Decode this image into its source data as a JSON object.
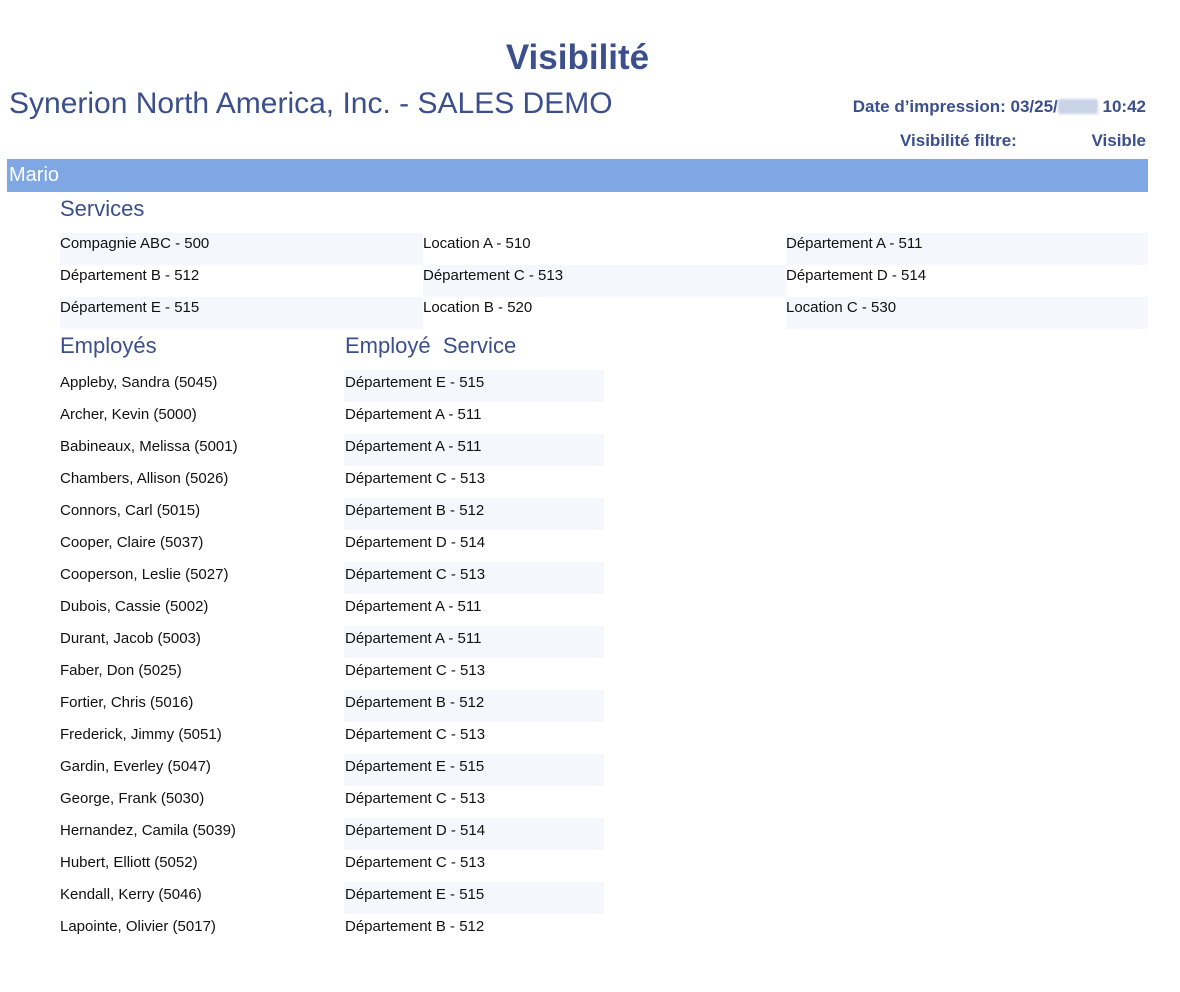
{
  "report": {
    "title": "Visibilité",
    "company": "Synerion North America, Inc. - SALES DEMO",
    "print_date_prefix": "Date d’impression: 03/25/",
    "print_date_time": "10:42",
    "filter_label": "Visibilité filtre:",
    "filter_value": "Visible"
  },
  "user": {
    "name": "Mario"
  },
  "services": {
    "heading": "Services",
    "items": [
      "Compagnie ABC - 500",
      "Location A - 510",
      "Département A - 511",
      "Département B - 512",
      "Département C - 513",
      "Département D - 514",
      "Département E - 515",
      "Location B - 520",
      "Location C - 530"
    ]
  },
  "employees": {
    "heading_name": "Employés",
    "heading_service": "Employé  Service",
    "rows": [
      {
        "name": "Appleby, Sandra (5045)",
        "service": "Département E - 515"
      },
      {
        "name": "Archer, Kevin (5000)",
        "service": "Département A - 511"
      },
      {
        "name": "Babineaux, Melissa (5001)",
        "service": "Département A - 511"
      },
      {
        "name": "Chambers, Allison (5026)",
        "service": "Département C - 513"
      },
      {
        "name": "Connors, Carl (5015)",
        "service": "Département B - 512"
      },
      {
        "name": "Cooper, Claire (5037)",
        "service": "Département D - 514"
      },
      {
        "name": "Cooperson, Leslie (5027)",
        "service": "Département C - 513"
      },
      {
        "name": "Dubois, Cassie (5002)",
        "service": "Département A - 511"
      },
      {
        "name": "Durant, Jacob (5003)",
        "service": "Département A - 511"
      },
      {
        "name": "Faber, Don (5025)",
        "service": "Département C - 513"
      },
      {
        "name": "Fortier, Chris (5016)",
        "service": "Département B - 512"
      },
      {
        "name": "Frederick, Jimmy (5051)",
        "service": "Département C - 513"
      },
      {
        "name": "Gardin, Everley (5047)",
        "service": "Département E - 515"
      },
      {
        "name": "George, Frank (5030)",
        "service": "Département C - 513"
      },
      {
        "name": "Hernandez, Camila (5039)",
        "service": "Département D - 514"
      },
      {
        "name": "Hubert, Elliott (5052)",
        "service": "Département C - 513"
      },
      {
        "name": "Kendall, Kerry (5046)",
        "service": "Département E - 515"
      },
      {
        "name": "Lapointe, Olivier (5017)",
        "service": "Département B - 512"
      }
    ]
  },
  "colors": {
    "heading_blue": "#3a4f8c",
    "band_blue": "#7fa7e3",
    "row_shade": "#f5f7fc"
  }
}
